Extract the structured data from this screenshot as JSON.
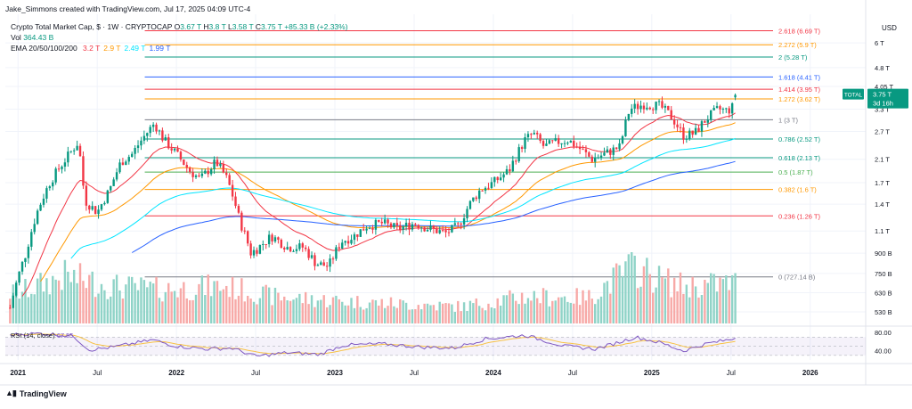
{
  "header": {
    "author_line": "Jake_Simmons created with TradingView.com, Jul 17, 2025 04:09 UTC-4",
    "symbol": "Crypto Total Market Cap, $ · 1W · CRYPTOCAP",
    "ohlc": [
      {
        "k": "O",
        "v": "3.67 T"
      },
      {
        "k": "H",
        "v": "3.8 T"
      },
      {
        "k": "L",
        "v": "3.58 T"
      },
      {
        "k": "C",
        "v": "3.75 T"
      }
    ],
    "change": "+85.33 B (+2.33%)",
    "vol_label": "Vol",
    "vol_value": "364.43 B",
    "ema_label": "EMA 20/50/100/200",
    "ema_values": [
      {
        "v": "3.2 T",
        "color": "#f23645"
      },
      {
        "v": "2.9 T",
        "color": "#ff9800"
      },
      {
        "v": "2.49 T",
        "color": "#00e5ff"
      },
      {
        "v": "1.99 T",
        "color": "#2962ff"
      }
    ]
  },
  "price_axis": {
    "currency": "USD",
    "ticks": [
      "6 T",
      "4.8 T",
      "4.05 T",
      "3.3 T",
      "2.7 T",
      "2.1 T",
      "1.7 T",
      "1.4 T",
      "1.1 T",
      "900 B",
      "750 B",
      "630 B",
      "530 B"
    ],
    "tick_values": [
      6.0,
      4.8,
      4.05,
      3.3,
      2.7,
      2.1,
      1.7,
      1.4,
      1.1,
      0.9,
      0.75,
      0.63,
      0.53
    ],
    "current_badge": {
      "label": "TOTAL",
      "value": "3.75 T",
      "countdown": "3d 16h",
      "color": "#089981"
    }
  },
  "rsi": {
    "label": "RSI (14, close)",
    "value": "67.55",
    "ticks": [
      "80.00",
      "40.00"
    ],
    "tick_values": [
      80,
      40
    ],
    "upper": 70,
    "lower": 30
  },
  "time_axis": {
    "labels": [
      "2021",
      "Jul",
      "2022",
      "Jul",
      "2023",
      "Jul",
      "2024",
      "Jul",
      "2025",
      "Jul",
      "2026"
    ],
    "label_x": [
      2021.0,
      2021.5,
      2022.0,
      2022.5,
      2023.0,
      2023.5,
      2024.0,
      2024.5,
      2025.0,
      2025.5,
      2026.0
    ],
    "bold": [
      true,
      false,
      true,
      false,
      true,
      false,
      true,
      false,
      true,
      false,
      true
    ]
  },
  "brand": "TradingView",
  "colors": {
    "up": "#089981",
    "down": "#f23645",
    "up_vol": "#8fd3c7",
    "down_vol": "#f7a9a7",
    "ema20": "#f23645",
    "ema50": "#ff9800",
    "ema100": "#00e5ff",
    "ema200": "#2962ff",
    "rsi_line": "#7e57c2",
    "rsi_ma": "#f7c244",
    "rsi_band": "#7e57c2"
  },
  "chart_data": {
    "type": "candlestick",
    "fib_levels": [
      {
        "label": "2.618 (6.69 T)",
        "value": 6.69,
        "color": "#f23645"
      },
      {
        "label": "2.272 (5.9 T)",
        "value": 5.9,
        "color": "#ff9800"
      },
      {
        "label": "2 (5.28 T)",
        "value": 5.28,
        "color": "#089981"
      },
      {
        "label": "1.618 (4.41 T)",
        "value": 4.41,
        "color": "#2962ff"
      },
      {
        "label": "1.414 (3.95 T)",
        "value": 3.95,
        "color": "#f23645"
      },
      {
        "label": "1.272 (3.62 T)",
        "value": 3.62,
        "color": "#ff9800"
      },
      {
        "label": "1 (3 T)",
        "value": 3.0,
        "color": "#787b86"
      },
      {
        "label": "0.786 (2.52 T)",
        "value": 2.52,
        "color": "#089981"
      },
      {
        "label": "0.618 (2.13 T)",
        "value": 2.13,
        "color": "#089981"
      },
      {
        "label": "0.5 (1.87 T)",
        "value": 1.87,
        "color": "#4caf50"
      },
      {
        "label": "0.382 (1.6 T)",
        "value": 1.6,
        "color": "#ff9800"
      },
      {
        "label": "0.236 (1.26 T)",
        "value": 1.26,
        "color": "#f23645"
      },
      {
        "label": "0 (727.14 B)",
        "value": 0.727,
        "color": "#787b86"
      }
    ],
    "fib_start_x": 2021.8,
    "x_range": [
      2020.92,
      2026.35
    ],
    "price_keyframes": [
      [
        2020.95,
        0.55
      ],
      [
        2021.05,
        0.9
      ],
      [
        2021.12,
        1.3
      ],
      [
        2021.2,
        1.7
      ],
      [
        2021.3,
        2.1
      ],
      [
        2021.38,
        2.45
      ],
      [
        2021.42,
        1.45
      ],
      [
        2021.5,
        1.3
      ],
      [
        2021.58,
        1.6
      ],
      [
        2021.65,
        2.05
      ],
      [
        2021.72,
        2.2
      ],
      [
        2021.8,
        2.6
      ],
      [
        2021.86,
        2.9
      ],
      [
        2021.92,
        2.5
      ],
      [
        2022.0,
        2.2
      ],
      [
        2022.08,
        1.9
      ],
      [
        2022.15,
        1.75
      ],
      [
        2022.25,
        2.05
      ],
      [
        2022.32,
        1.75
      ],
      [
        2022.4,
        1.2
      ],
      [
        2022.47,
        0.9
      ],
      [
        2022.52,
        0.95
      ],
      [
        2022.6,
        1.05
      ],
      [
        2022.7,
        0.95
      ],
      [
        2022.8,
        0.95
      ],
      [
        2022.88,
        0.82
      ],
      [
        2022.96,
        0.8
      ],
      [
        2023.04,
        1.0
      ],
      [
        2023.12,
        1.05
      ],
      [
        2023.2,
        1.15
      ],
      [
        2023.3,
        1.18
      ],
      [
        2023.4,
        1.12
      ],
      [
        2023.5,
        1.18
      ],
      [
        2023.6,
        1.12
      ],
      [
        2023.7,
        1.08
      ],
      [
        2023.78,
        1.15
      ],
      [
        2023.85,
        1.4
      ],
      [
        2023.92,
        1.6
      ],
      [
        2024.0,
        1.7
      ],
      [
        2024.1,
        1.9
      ],
      [
        2024.2,
        2.5
      ],
      [
        2024.25,
        2.65
      ],
      [
        2024.32,
        2.35
      ],
      [
        2024.4,
        2.45
      ],
      [
        2024.47,
        2.5
      ],
      [
        2024.55,
        2.3
      ],
      [
        2024.62,
        2.1
      ],
      [
        2024.7,
        2.2
      ],
      [
        2024.8,
        2.35
      ],
      [
        2024.86,
        3.3
      ],
      [
        2024.95,
        3.45
      ],
      [
        2025.05,
        3.4
      ],
      [
        2025.12,
        3.1
      ],
      [
        2025.2,
        2.6
      ],
      [
        2025.27,
        2.65
      ],
      [
        2025.35,
        3.05
      ],
      [
        2025.42,
        3.3
      ],
      [
        2025.48,
        3.25
      ],
      [
        2025.52,
        3.4
      ],
      [
        2025.54,
        3.75
      ]
    ],
    "volume_keyframes": [
      [
        2021.0,
        0.45
      ],
      [
        2021.3,
        0.7
      ],
      [
        2021.6,
        0.55
      ],
      [
        2021.9,
        0.5
      ],
      [
        2022.3,
        0.55
      ],
      [
        2022.6,
        0.4
      ],
      [
        2022.9,
        0.35
      ],
      [
        2023.3,
        0.3
      ],
      [
        2023.8,
        0.25
      ],
      [
        2024.2,
        0.4
      ],
      [
        2024.6,
        0.38
      ],
      [
        2024.88,
        0.85
      ],
      [
        2025.05,
        0.65
      ],
      [
        2025.2,
        0.55
      ],
      [
        2025.54,
        0.6
      ]
    ],
    "rsi_keyframes": [
      [
        2020.95,
        75
      ],
      [
        2021.15,
        78
      ],
      [
        2021.35,
        72
      ],
      [
        2021.45,
        42
      ],
      [
        2021.6,
        48
      ],
      [
        2021.85,
        64
      ],
      [
        2022.0,
        50
      ],
      [
        2022.2,
        44
      ],
      [
        2022.35,
        46
      ],
      [
        2022.5,
        28
      ],
      [
        2022.7,
        36
      ],
      [
        2022.9,
        32
      ],
      [
        2023.05,
        52
      ],
      [
        2023.3,
        55
      ],
      [
        2023.55,
        48
      ],
      [
        2023.75,
        46
      ],
      [
        2023.95,
        66
      ],
      [
        2024.2,
        74
      ],
      [
        2024.45,
        50
      ],
      [
        2024.65,
        44
      ],
      [
        2024.9,
        70
      ],
      [
        2025.05,
        58
      ],
      [
        2025.2,
        40
      ],
      [
        2025.35,
        56
      ],
      [
        2025.45,
        62
      ],
      [
        2025.54,
        67.55
      ]
    ],
    "ema_endpoints": {
      "ema20": 3.2,
      "ema50": 2.9,
      "ema100": 2.49,
      "ema200": 1.99
    }
  }
}
